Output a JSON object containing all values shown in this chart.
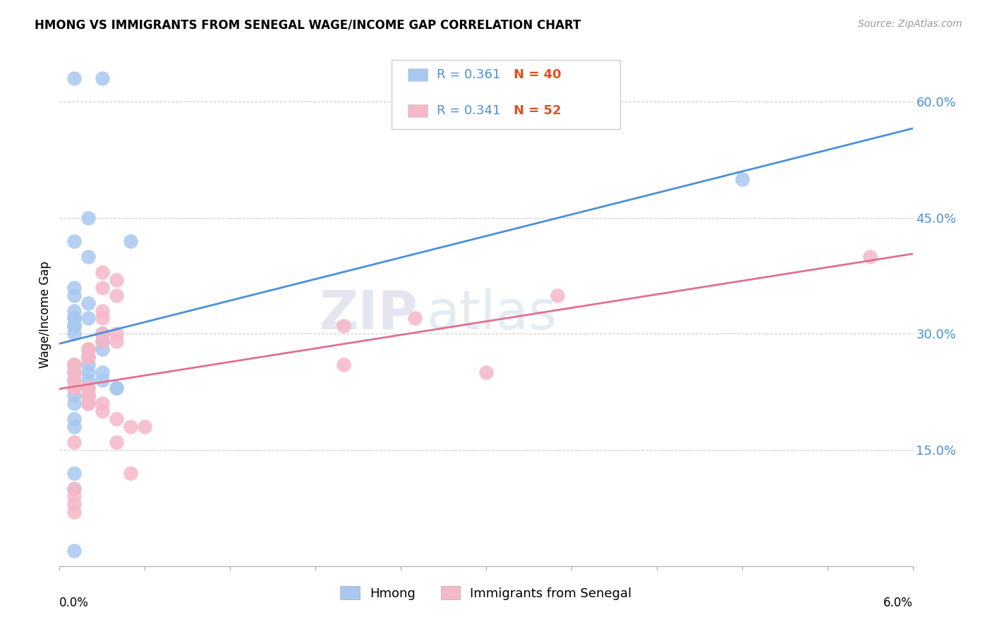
{
  "title": "HMONG VS IMMIGRANTS FROM SENEGAL WAGE/INCOME GAP CORRELATION CHART",
  "source": "Source: ZipAtlas.com",
  "ylabel": "Wage/Income Gap",
  "yticks_right": [
    "15.0%",
    "30.0%",
    "45.0%",
    "60.0%"
  ],
  "yticks_right_vals": [
    0.15,
    0.3,
    0.45,
    0.6
  ],
  "xmin": 0.0,
  "xmax": 0.06,
  "ymin": 0.0,
  "ymax": 0.65,
  "legend_r1": "R = 0.361",
  "legend_n1": "N = 40",
  "legend_r2": "R = 0.341",
  "legend_n2": "N = 52",
  "hmong_color": "#a8c8f0",
  "senegal_color": "#f5b8c8",
  "trend_hmong_color": "#4a90d9",
  "trend_senegal_color": "#e07090",
  "watermark_zip": "ZIP",
  "watermark_atlas": "atlas",
  "hmong_x": [
    0.001,
    0.003,
    0.002,
    0.005,
    0.001,
    0.002,
    0.001,
    0.001,
    0.002,
    0.001,
    0.001,
    0.001,
    0.002,
    0.001,
    0.001,
    0.001,
    0.001,
    0.003,
    0.003,
    0.003,
    0.003,
    0.003,
    0.003,
    0.002,
    0.002,
    0.002,
    0.002,
    0.003,
    0.003,
    0.002,
    0.004,
    0.004,
    0.001,
    0.001,
    0.001,
    0.001,
    0.001,
    0.001,
    0.048,
    0.001
  ],
  "hmong_y": [
    0.63,
    0.63,
    0.45,
    0.42,
    0.42,
    0.4,
    0.36,
    0.35,
    0.34,
    0.33,
    0.32,
    0.32,
    0.32,
    0.31,
    0.31,
    0.31,
    0.3,
    0.3,
    0.3,
    0.3,
    0.29,
    0.29,
    0.28,
    0.28,
    0.27,
    0.26,
    0.25,
    0.25,
    0.24,
    0.24,
    0.23,
    0.23,
    0.22,
    0.21,
    0.19,
    0.18,
    0.12,
    0.1,
    0.5,
    0.02
  ],
  "senegal_x": [
    0.003,
    0.004,
    0.003,
    0.003,
    0.004,
    0.003,
    0.004,
    0.003,
    0.002,
    0.002,
    0.002,
    0.002,
    0.001,
    0.001,
    0.001,
    0.001,
    0.001,
    0.001,
    0.001,
    0.001,
    0.001,
    0.001,
    0.001,
    0.001,
    0.002,
    0.002,
    0.002,
    0.002,
    0.002,
    0.002,
    0.002,
    0.002,
    0.003,
    0.003,
    0.004,
    0.005,
    0.006,
    0.02,
    0.02,
    0.025,
    0.03,
    0.035,
    0.003,
    0.004,
    0.004,
    0.005,
    0.001,
    0.001,
    0.001,
    0.001,
    0.057,
    0.001
  ],
  "senegal_y": [
    0.36,
    0.35,
    0.33,
    0.32,
    0.3,
    0.3,
    0.29,
    0.29,
    0.28,
    0.28,
    0.27,
    0.27,
    0.26,
    0.26,
    0.26,
    0.26,
    0.25,
    0.25,
    0.25,
    0.24,
    0.24,
    0.24,
    0.23,
    0.23,
    0.23,
    0.23,
    0.22,
    0.22,
    0.22,
    0.22,
    0.21,
    0.21,
    0.21,
    0.2,
    0.19,
    0.18,
    0.18,
    0.31,
    0.26,
    0.32,
    0.25,
    0.35,
    0.38,
    0.37,
    0.16,
    0.12,
    0.16,
    0.1,
    0.09,
    0.08,
    0.4,
    0.07
  ]
}
